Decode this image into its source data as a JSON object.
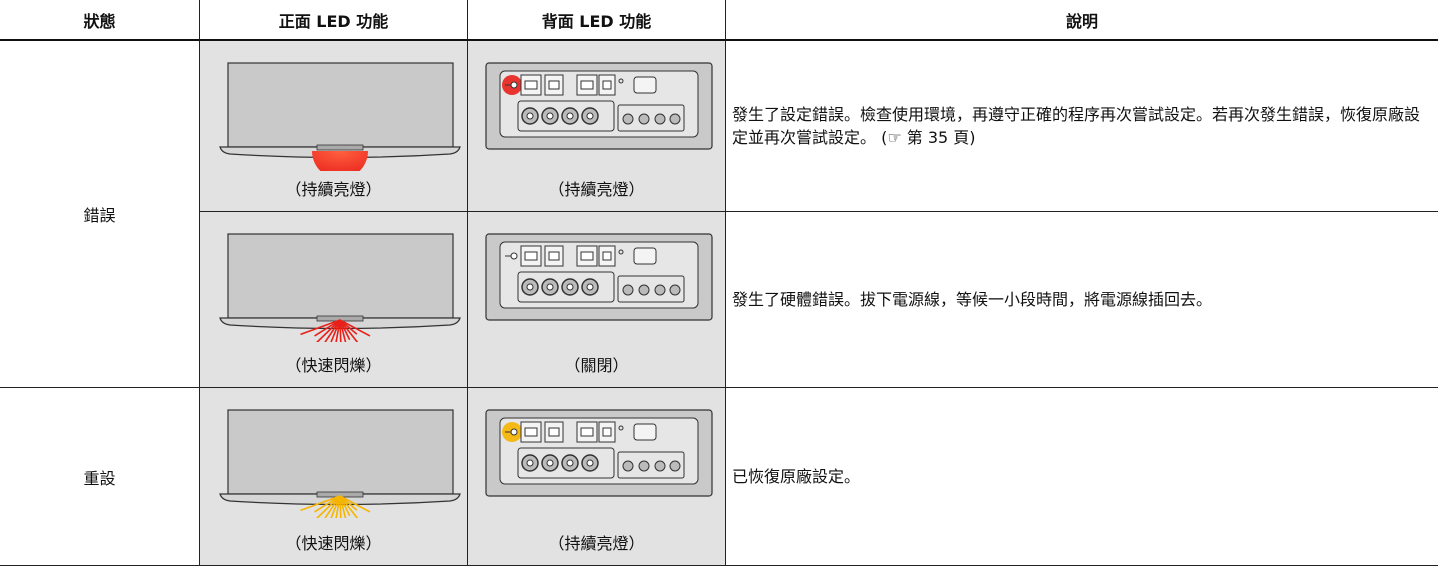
{
  "table": {
    "header": [
      "狀態",
      "正面 LED 功能",
      "背面 LED 功能",
      "說明"
    ],
    "groups": [
      {
        "status": "錯誤",
        "entries": [
          {
            "front": "（持續亮燈）",
            "rear": "（持續亮燈）",
            "description": "發生了設定錯誤。檢查使用環境，再遵守正確的程序再次嘗試設定。若再次發生錯誤，恢復原廠設定並再次嘗試設定。 (☞ 第 35 頁)"
          },
          {
            "front": "（快速閃爍）",
            "rear": "（關閉）",
            "description": "發生了硬體錯誤。拔下電源線，等候一小段時間，將電源線插回去。"
          }
        ]
      },
      {
        "status": "重設",
        "entries": [
          {
            "front": "（快速閃爍）",
            "rear": "（持續亮燈）",
            "description": "已恢復原廠設定。"
          }
        ]
      }
    ]
  }
}
